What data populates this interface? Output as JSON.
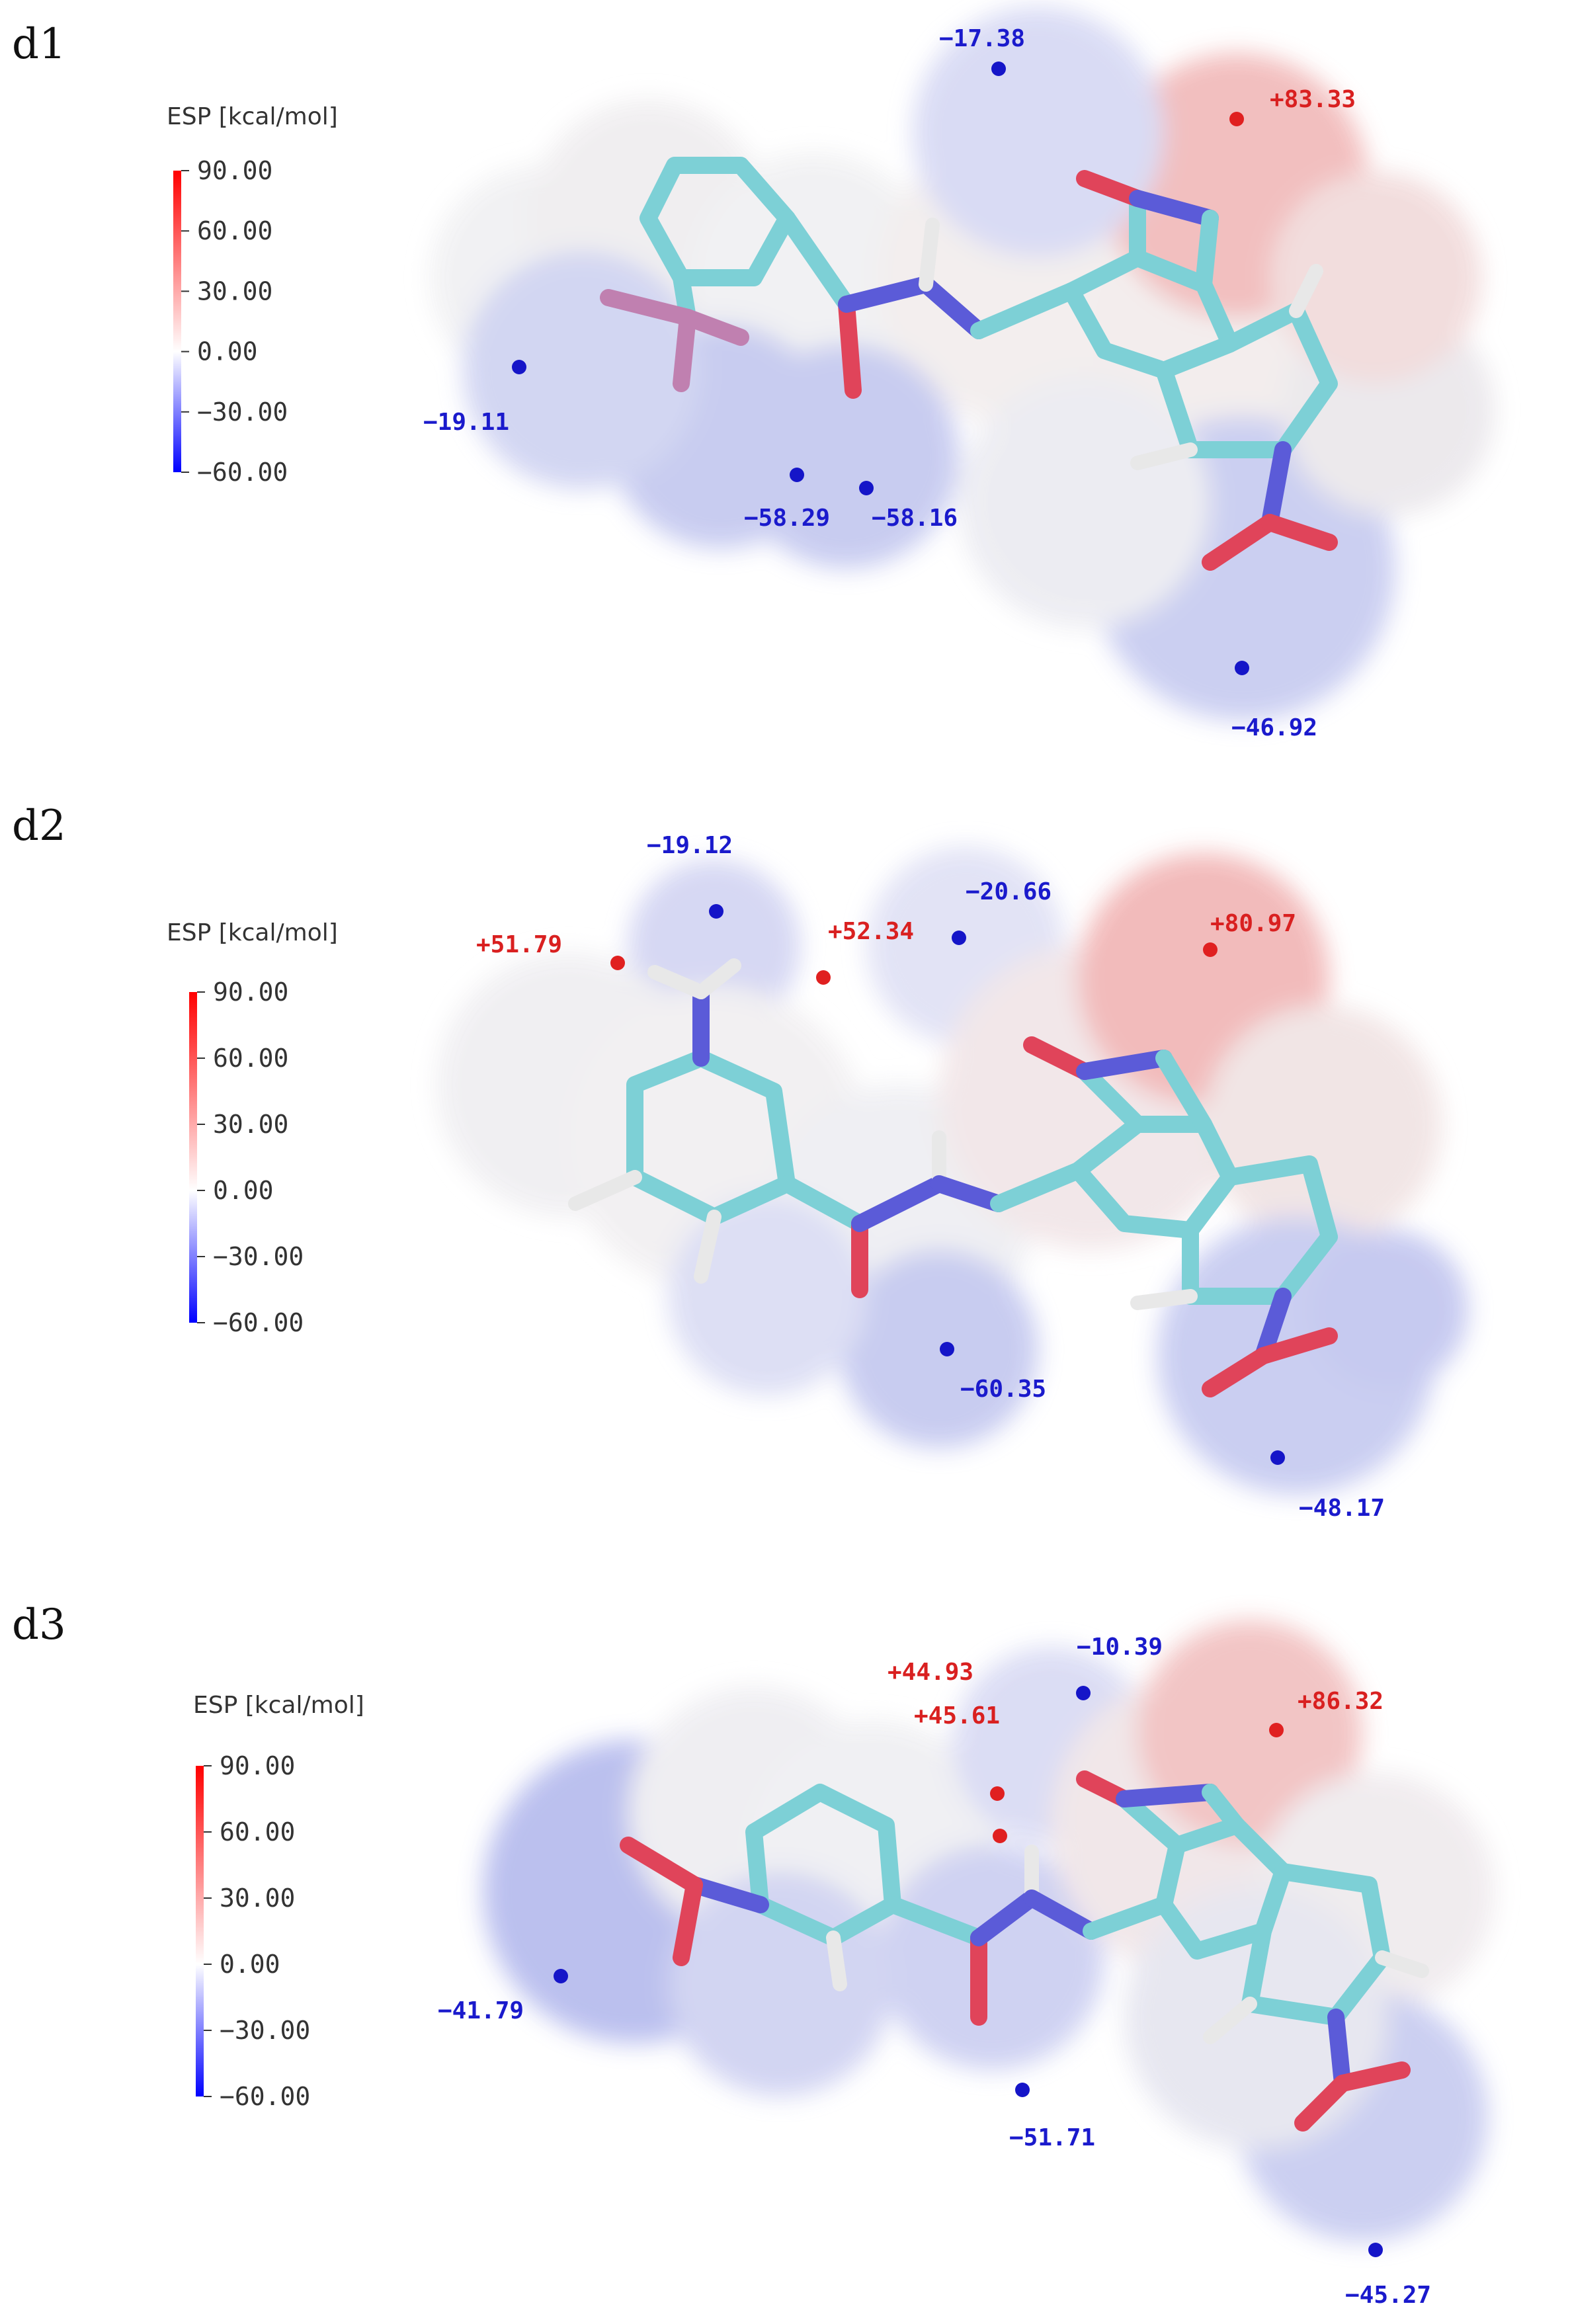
{
  "legend": {
    "title": "ESP  [kcal/mol]",
    "ticks": [
      "90.00",
      "60.00",
      "30.00",
      "0.00",
      "−30.00",
      "−60.00"
    ],
    "colors": {
      "max": "#ff0000",
      "mid": "#ffffff",
      "min": "#0000ff"
    }
  },
  "colors": {
    "negative_label": "#1a1acc",
    "positive_label": "#d92020",
    "negative_point": "#1515c8",
    "positive_point": "#e02020",
    "surface_negative": "#8e96ec",
    "surface_neutral": "#f1f1f3",
    "surface_positive": "#f29a9a",
    "carbon": "#7dd0d6",
    "nitrogen": "#5b5bd8",
    "oxygen": "#e0445a",
    "hydrogen": "#e8e8e8",
    "fluorine": "#c080b0"
  },
  "panels": [
    {
      "label": "d1",
      "points": [
        {
          "value": "−17.38",
          "sign": "neg"
        },
        {
          "value": "+83.33",
          "sign": "pos"
        },
        {
          "value": "−19.11",
          "sign": "neg"
        },
        {
          "value": "−58.29",
          "sign": "neg"
        },
        {
          "value": "−58.16",
          "sign": "neg"
        },
        {
          "value": "−46.92",
          "sign": "neg"
        }
      ]
    },
    {
      "label": "d2",
      "points": [
        {
          "value": "−19.12",
          "sign": "neg"
        },
        {
          "value": "+51.79",
          "sign": "pos"
        },
        {
          "value": "+52.34",
          "sign": "pos"
        },
        {
          "value": "−20.66",
          "sign": "neg"
        },
        {
          "value": "+80.97",
          "sign": "pos"
        },
        {
          "value": "−60.35",
          "sign": "neg"
        },
        {
          "value": "−48.17",
          "sign": "neg"
        }
      ]
    },
    {
      "label": "d3",
      "points": [
        {
          "value": "+44.93",
          "sign": "pos"
        },
        {
          "value": "+45.61",
          "sign": "pos"
        },
        {
          "value": "−10.39",
          "sign": "neg"
        },
        {
          "value": "+86.32",
          "sign": "pos"
        },
        {
          "value": "−41.79",
          "sign": "neg"
        },
        {
          "value": "−51.71",
          "sign": "neg"
        },
        {
          "value": "−45.27",
          "sign": "neg"
        }
      ]
    }
  ]
}
